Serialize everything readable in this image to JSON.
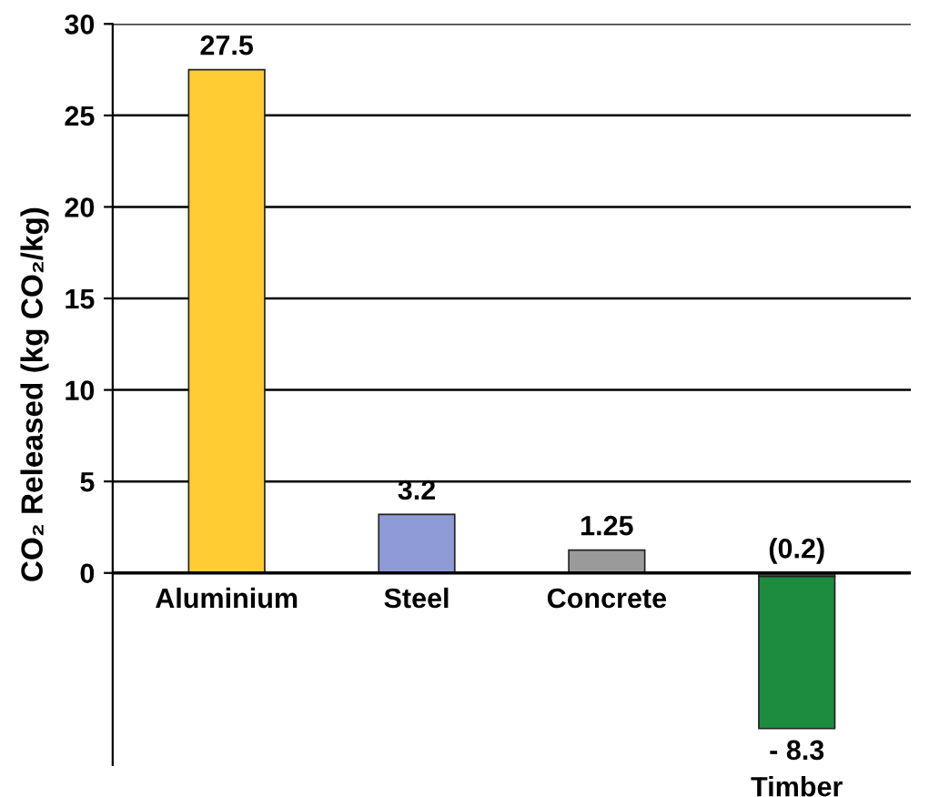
{
  "chart_data": {
    "type": "bar",
    "ylabel": "CO₂ Released (kg CO₂/kg)",
    "categories": [
      "Aluminium",
      "Steel",
      "Concrete",
      "Timber"
    ],
    "stacked": true,
    "series": [
      {
        "colors": [
          "#ffcc33",
          "#8f9bd6",
          "#9a9a9a",
          "#444444"
        ],
        "values": [
          27.5,
          3.2,
          1.25,
          -0.2
        ],
        "value_labels": [
          "27.5",
          "3.2",
          "1.25",
          "(0.2)"
        ]
      },
      {
        "color": "#1e8c3e",
        "values": [
          null,
          null,
          null,
          -8.3
        ],
        "value_labels": [
          null,
          null,
          null,
          "- 8.3"
        ]
      }
    ],
    "ylim": [
      -10.5,
      30
    ],
    "yticks": [
      0,
      5,
      10,
      15,
      20,
      25,
      30
    ],
    "grid": "y"
  }
}
